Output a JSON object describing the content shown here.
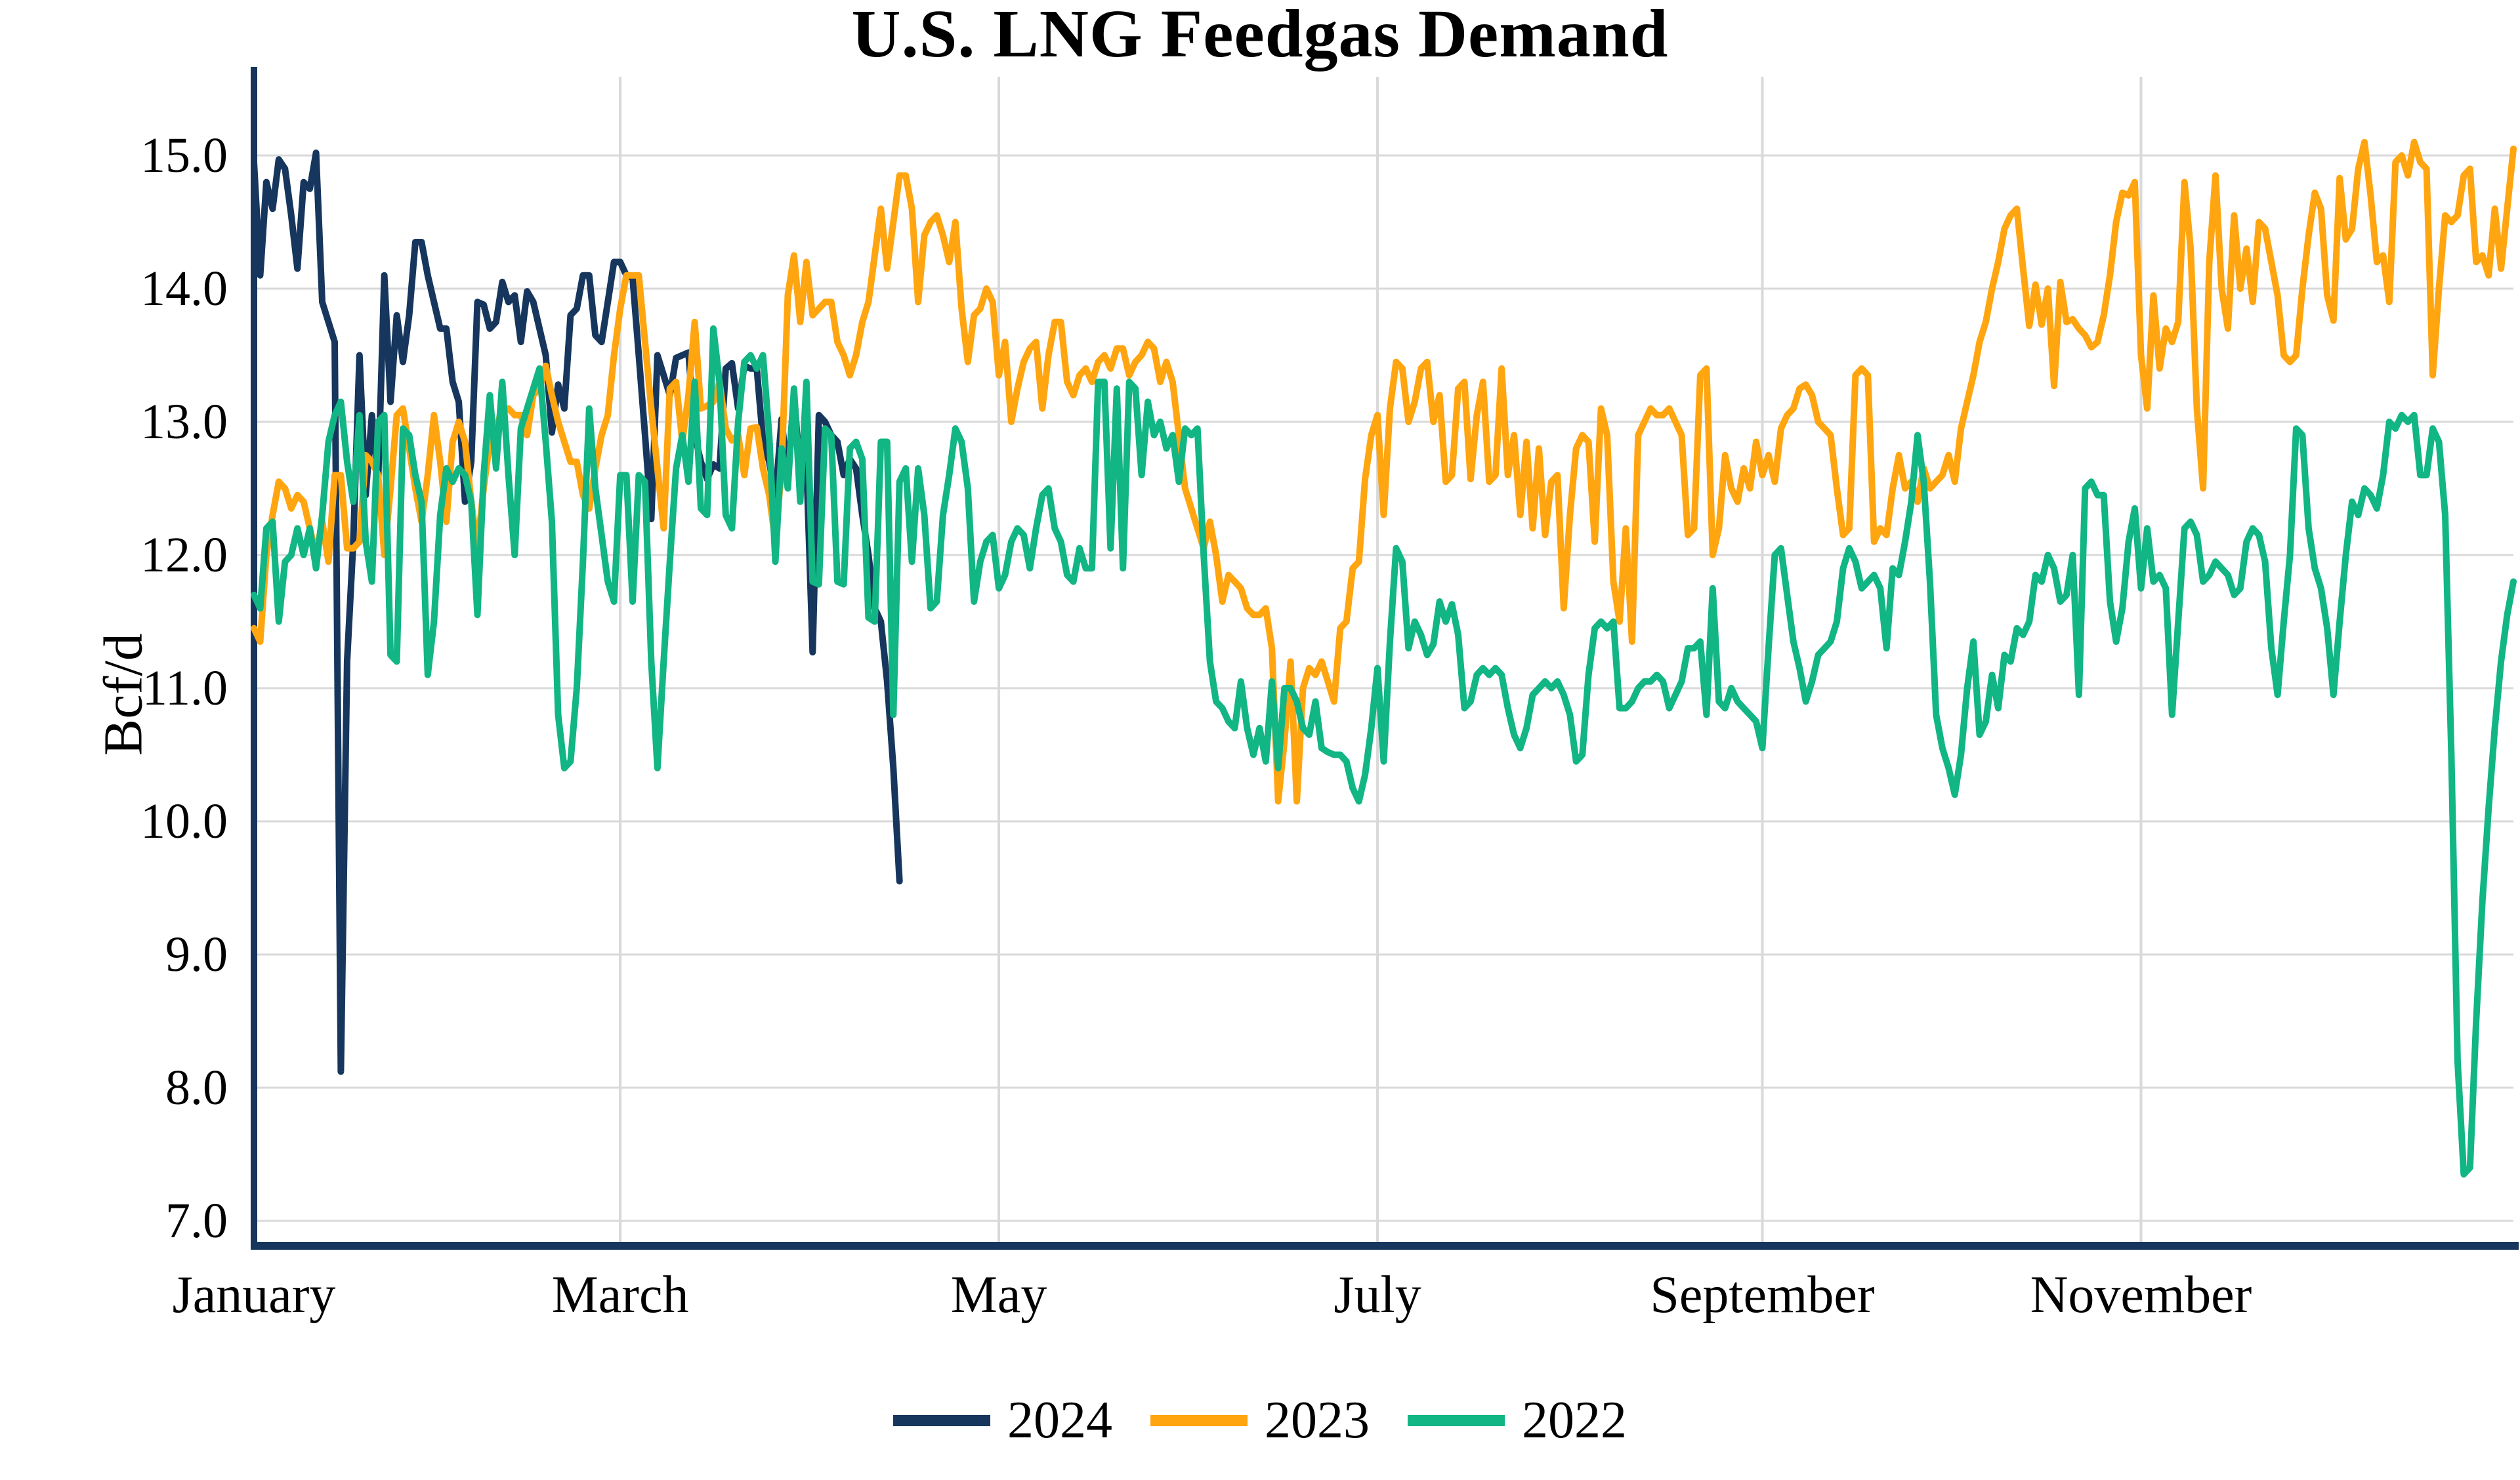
{
  "chart_data": {
    "type": "line",
    "title": "U.S. LNG Feedgas Demand",
    "ylabel": "Bcf/d",
    "x_unit": "day_of_year",
    "xlim_days": [
      0,
      364
    ],
    "ylim": [
      7.0,
      15.0
    ],
    "yticks": [
      15.0,
      14.0,
      13.0,
      12.0,
      11.0,
      10.0,
      9.0,
      8.0,
      7.0
    ],
    "ytick_labels": [
      "15.0",
      "14.0",
      "13.0",
      "12.0",
      "11.0",
      "10.0",
      "9.0",
      "8.0",
      "7.0"
    ],
    "xticks": [
      {
        "label": "January",
        "day": 0
      },
      {
        "label": "March",
        "day": 59
      },
      {
        "label": "May",
        "day": 120
      },
      {
        "label": "July",
        "day": 181
      },
      {
        "label": "September",
        "day": 243
      },
      {
        "label": "November",
        "day": 304
      }
    ],
    "grid": {
      "color": "#D9D9D9",
      "horizontal": true,
      "vertical_on_labeled_ticks": true
    },
    "axis_color": "#16365D",
    "legend": {
      "position": "bottom-center",
      "entries": [
        "2024",
        "2023",
        "2022"
      ]
    },
    "series": [
      {
        "name": "2024",
        "color": "#16365D",
        "start_day": 0,
        "values": [
          14.95,
          14.1,
          14.8,
          14.6,
          14.97,
          14.9,
          14.55,
          14.15,
          14.8,
          14.75,
          15.02,
          13.9,
          13.75,
          13.6,
          8.12,
          11.2,
          12.1,
          13.5,
          12.45,
          13.05,
          12.55,
          14.1,
          13.15,
          13.8,
          13.45,
          13.8,
          14.35,
          14.35,
          14.1,
          13.9,
          13.7,
          13.7,
          13.3,
          13.15,
          12.4,
          12.7,
          13.9,
          13.88,
          13.7,
          13.75,
          14.05,
          13.9,
          13.95,
          13.6,
          13.98,
          13.9,
          13.7,
          13.5,
          12.92,
          13.28,
          13.1,
          13.8,
          13.85,
          14.1,
          14.1,
          13.65,
          13.6,
          13.9,
          14.2,
          14.2,
          14.1,
          14.08,
          13.5,
          12.9,
          12.27,
          13.5,
          13.35,
          13.2,
          13.48,
          13.5,
          13.52,
          12.9,
          12.7,
          12.57,
          12.68,
          12.65,
          13.4,
          13.44,
          13.1,
          13.42,
          13.4,
          13.4,
          12.86,
          12.7,
          12.43,
          13.02,
          12.57,
          13.22,
          12.57,
          12.7,
          11.27,
          13.05,
          13.0,
          12.9,
          12.85,
          12.6,
          12.72,
          12.65,
          12.3,
          12.0,
          11.6,
          11.5,
          11.05,
          10.4,
          9.55
        ]
      },
      {
        "name": "2023",
        "color": "#FFA510",
        "start_day": 0,
        "values": [
          11.45,
          11.35,
          12.0,
          12.3,
          12.55,
          12.5,
          12.35,
          12.45,
          12.4,
          12.2,
          12.0,
          12.25,
          11.95,
          12.6,
          12.6,
          12.05,
          12.05,
          12.1,
          12.75,
          12.7,
          12.6,
          12.0,
          12.5,
          13.05,
          13.1,
          12.8,
          12.5,
          12.25,
          12.6,
          13.05,
          12.7,
          12.25,
          12.85,
          13.0,
          12.85,
          12.4,
          12.05,
          12.5,
          12.85,
          12.95,
          13.1,
          13.1,
          13.05,
          13.05,
          12.9,
          13.2,
          13.25,
          13.42,
          13.2,
          13.0,
          12.85,
          12.7,
          12.7,
          12.45,
          12.35,
          12.65,
          12.9,
          13.05,
          13.5,
          13.85,
          14.1,
          14.1,
          14.1,
          13.6,
          13.1,
          12.65,
          12.2,
          13.25,
          13.3,
          12.85,
          13.2,
          13.75,
          13.1,
          13.12,
          13.15,
          13.3,
          12.95,
          12.86,
          12.9,
          12.6,
          12.95,
          12.96,
          12.65,
          12.45,
          12.1,
          12.65,
          13.95,
          14.25,
          13.75,
          14.2,
          13.8,
          13.85,
          13.9,
          13.9,
          13.6,
          13.5,
          13.35,
          13.5,
          13.75,
          13.9,
          14.25,
          14.6,
          14.15,
          14.5,
          14.85,
          14.85,
          14.6,
          13.9,
          14.4,
          14.5,
          14.55,
          14.4,
          14.2,
          14.5,
          13.85,
          13.45,
          13.8,
          13.85,
          14.0,
          13.9,
          13.35,
          13.6,
          13.0,
          13.25,
          13.45,
          13.55,
          13.6,
          13.1,
          13.5,
          13.75,
          13.75,
          13.3,
          13.2,
          13.35,
          13.4,
          13.3,
          13.45,
          13.5,
          13.4,
          13.55,
          13.55,
          13.35,
          13.45,
          13.5,
          13.6,
          13.55,
          13.3,
          13.45,
          13.3,
          12.9,
          12.5,
          12.35,
          12.2,
          12.05,
          12.25,
          12.0,
          11.65,
          11.85,
          11.8,
          11.75,
          11.6,
          11.55,
          11.55,
          11.6,
          11.3,
          10.15,
          10.6,
          11.2,
          10.15,
          11.0,
          11.15,
          11.1,
          11.2,
          11.05,
          10.9,
          11.45,
          11.5,
          11.9,
          11.95,
          12.57,
          12.9,
          13.05,
          12.3,
          13.1,
          13.45,
          13.4,
          13.0,
          13.15,
          13.4,
          13.45,
          13.0,
          13.2,
          12.55,
          12.6,
          13.25,
          13.3,
          12.57,
          13.05,
          13.3,
          12.55,
          12.6,
          13.4,
          12.6,
          12.9,
          12.3,
          12.85,
          12.2,
          12.8,
          12.15,
          12.55,
          12.6,
          11.6,
          12.3,
          12.8,
          12.9,
          12.85,
          12.1,
          13.1,
          12.9,
          11.8,
          11.5,
          12.2,
          11.35,
          12.9,
          13.0,
          13.1,
          13.05,
          13.05,
          13.1,
          13.0,
          12.9,
          12.15,
          12.2,
          13.35,
          13.4,
          12.0,
          12.2,
          12.75,
          12.5,
          12.4,
          12.65,
          12.5,
          12.85,
          12.6,
          12.75,
          12.55,
          12.95,
          13.05,
          13.1,
          13.25,
          13.28,
          13.2,
          13.0,
          12.95,
          12.9,
          12.5,
          12.15,
          12.2,
          13.35,
          13.4,
          13.35,
          12.1,
          12.2,
          12.15,
          12.5,
          12.75,
          12.5,
          12.55,
          12.4,
          12.65,
          12.5,
          12.55,
          12.6,
          12.75,
          12.55,
          12.95,
          13.15,
          13.35,
          13.6,
          13.75,
          14.0,
          14.2,
          14.45,
          14.55,
          14.6,
          14.15,
          13.72,
          14.03,
          13.73,
          14.0,
          13.27,
          14.05,
          13.75,
          13.77,
          13.7,
          13.65,
          13.56,
          13.6,
          13.8,
          14.1,
          14.5,
          14.72,
          14.7,
          14.8,
          13.5,
          13.1,
          13.95,
          13.4,
          13.7,
          13.6,
          13.75,
          14.8,
          14.3,
          13.1,
          12.5,
          14.2,
          14.85,
          14.0,
          13.7,
          14.55,
          14.0,
          14.3,
          13.9,
          14.5,
          14.45,
          14.2,
          13.95,
          13.5,
          13.45,
          13.5,
          14.0,
          14.4,
          14.72,
          14.6,
          13.95,
          13.76,
          14.83,
          14.37,
          14.45,
          14.9,
          15.1,
          14.7,
          14.2,
          14.25,
          13.9,
          14.95,
          15.0,
          14.85,
          15.1,
          14.95,
          14.9,
          13.35,
          14.0,
          14.55,
          14.5,
          14.55,
          14.85,
          14.9,
          14.2,
          14.25,
          14.1,
          14.6,
          14.15,
          14.6,
          15.05
        ]
      },
      {
        "name": "2022",
        "color": "#12B584",
        "start_day": 0,
        "values": [
          11.7,
          11.6,
          12.2,
          12.25,
          11.5,
          11.95,
          12.0,
          12.2,
          12.0,
          12.2,
          11.9,
          12.3,
          12.85,
          13.05,
          13.15,
          12.7,
          12.4,
          13.05,
          12.1,
          11.8,
          13.0,
          13.05,
          11.25,
          11.2,
          12.95,
          12.9,
          12.6,
          12.4,
          11.1,
          11.5,
          12.3,
          12.65,
          12.55,
          12.65,
          12.6,
          12.4,
          11.55,
          12.6,
          13.2,
          12.65,
          13.3,
          12.6,
          12.0,
          12.95,
          13.1,
          13.25,
          13.4,
          12.85,
          12.25,
          10.8,
          10.4,
          10.45,
          11.0,
          11.95,
          13.1,
          12.5,
          12.15,
          11.8,
          11.65,
          12.6,
          12.6,
          11.65,
          12.6,
          12.55,
          11.2,
          10.4,
          11.2,
          11.95,
          12.65,
          12.9,
          12.55,
          13.3,
          12.35,
          12.3,
          13.7,
          13.3,
          12.3,
          12.2,
          13.0,
          13.45,
          13.5,
          13.4,
          13.5,
          12.9,
          11.95,
          12.8,
          12.5,
          13.25,
          12.4,
          13.3,
          11.8,
          11.78,
          12.95,
          12.9,
          11.8,
          11.78,
          12.8,
          12.85,
          12.72,
          11.53,
          11.5,
          12.85,
          12.85,
          10.8,
          12.55,
          12.65,
          11.95,
          12.65,
          12.3,
          11.6,
          11.65,
          12.3,
          12.6,
          12.95,
          12.85,
          12.5,
          11.65,
          11.95,
          12.1,
          12.15,
          11.75,
          11.85,
          12.1,
          12.2,
          12.15,
          11.9,
          12.2,
          12.45,
          12.5,
          12.2,
          12.1,
          11.85,
          11.8,
          12.05,
          11.9,
          11.9,
          13.3,
          13.3,
          12.05,
          13.25,
          11.9,
          13.3,
          13.25,
          12.6,
          13.15,
          12.9,
          13.0,
          12.8,
          12.9,
          12.55,
          12.95,
          12.9,
          12.95,
          12.0,
          11.2,
          10.9,
          10.85,
          10.75,
          10.7,
          11.05,
          10.7,
          10.5,
          10.7,
          10.45,
          11.05,
          10.4,
          11.0,
          11.0,
          10.9,
          10.7,
          10.65,
          10.9,
          10.55,
          10.52,
          10.5,
          10.5,
          10.45,
          10.25,
          10.15,
          10.35,
          10.7,
          11.15,
          10.45,
          11.35,
          12.05,
          11.95,
          11.3,
          11.5,
          11.4,
          11.25,
          11.33,
          11.65,
          11.5,
          11.63,
          11.4,
          10.85,
          10.9,
          11.1,
          11.15,
          11.1,
          11.15,
          11.1,
          10.85,
          10.65,
          10.55,
          10.7,
          10.95,
          11.0,
          11.05,
          11.0,
          11.05,
          10.95,
          10.8,
          10.45,
          10.5,
          11.1,
          11.45,
          11.5,
          11.45,
          11.5,
          10.85,
          10.85,
          10.9,
          11.0,
          11.05,
          11.05,
          11.1,
          11.05,
          10.85,
          10.95,
          11.05,
          11.3,
          11.3,
          11.35,
          10.8,
          11.75,
          10.9,
          10.85,
          11.0,
          10.9,
          10.85,
          10.8,
          10.75,
          10.55,
          11.3,
          12.0,
          12.05,
          11.7,
          11.35,
          11.15,
          10.9,
          11.05,
          11.25,
          11.3,
          11.35,
          11.5,
          11.9,
          12.05,
          11.95,
          11.75,
          11.8,
          11.85,
          11.75,
          11.3,
          11.9,
          11.85,
          12.1,
          12.4,
          12.9,
          12.55,
          11.8,
          10.8,
          10.55,
          10.4,
          10.2,
          10.5,
          11.0,
          11.35,
          10.65,
          10.75,
          11.1,
          10.85,
          11.25,
          11.2,
          11.45,
          11.4,
          11.5,
          11.85,
          11.8,
          12.0,
          11.9,
          11.65,
          11.7,
          12.0,
          10.95,
          12.5,
          12.55,
          12.45,
          12.45,
          11.65,
          11.35,
          11.6,
          12.1,
          12.35,
          11.75,
          12.2,
          11.8,
          11.85,
          11.75,
          10.8,
          11.5,
          12.2,
          12.25,
          12.15,
          11.8,
          11.85,
          11.95,
          11.9,
          11.85,
          11.7,
          11.75,
          12.1,
          12.2,
          12.15,
          11.95,
          11.3,
          10.95,
          11.5,
          12.0,
          12.95,
          12.9,
          12.2,
          11.9,
          11.75,
          11.45,
          10.95,
          11.5,
          12.0,
          12.4,
          12.3,
          12.5,
          12.45,
          12.35,
          12.6,
          13.0,
          12.95,
          13.05,
          13.0,
          13.05,
          12.6,
          12.6,
          12.95,
          12.85,
          12.3,
          10.5,
          8.2,
          7.35,
          7.4,
          8.5,
          9.4,
          10.1,
          10.7,
          11.2,
          11.55,
          11.8
        ]
      }
    ]
  }
}
